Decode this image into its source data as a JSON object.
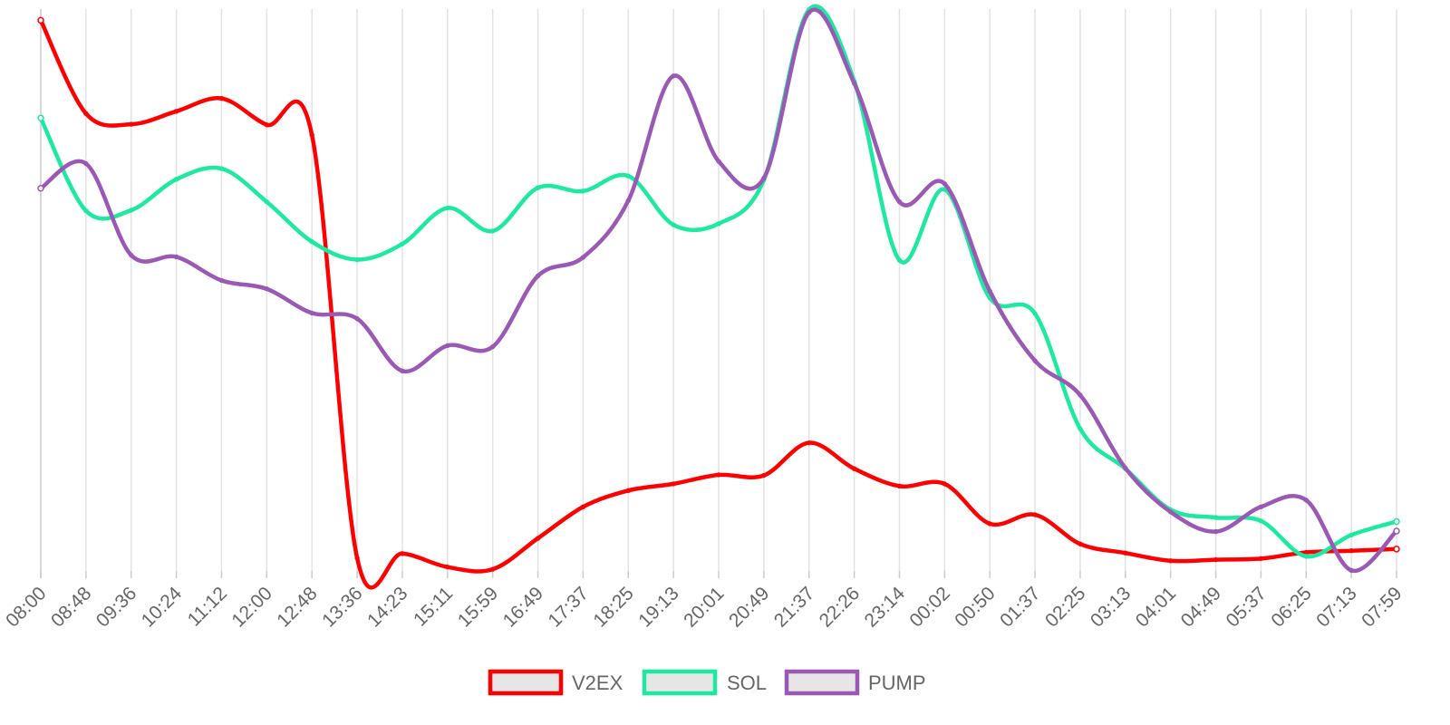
{
  "chart_data": {
    "type": "line",
    "title": "",
    "xlabel": "",
    "ylabel": "",
    "grid": "vertical",
    "legend_position": "bottom",
    "x": [
      "08:00",
      "08:48",
      "09:36",
      "10:24",
      "11:12",
      "12:00",
      "12:48",
      "13:36",
      "14:23",
      "15:11",
      "15:59",
      "16:49",
      "17:37",
      "18:25",
      "19:13",
      "20:01",
      "20:49",
      "21:37",
      "22:26",
      "23:14",
      "00:02",
      "00:50",
      "01:37",
      "02:25",
      "03:13",
      "04:01",
      "04:49",
      "05:37",
      "06:25",
      "07:13",
      "07:59"
    ],
    "ylim": [
      0,
      100
    ],
    "series": [
      {
        "name": "V2EX",
        "color": "#ff0000",
        "values": [
          98.0,
          81.4,
          79.5,
          81.8,
          84.1,
          79.4,
          77.6,
          2.3,
          3.1,
          0.7,
          0.3,
          5.8,
          11.4,
          14.3,
          15.5,
          17.1,
          17.0,
          22.8,
          18.2,
          15.1,
          15.5,
          8.4,
          10.0,
          4.8,
          3.2,
          1.8,
          2.0,
          2.2,
          3.3,
          3.6,
          3.9
        ]
      },
      {
        "name": "SOL",
        "color": "#1de9a0",
        "values": [
          80.6,
          64.1,
          64.2,
          69.7,
          71.6,
          65.7,
          58.6,
          55.4,
          58.2,
          64.6,
          60.5,
          68.2,
          67.6,
          70.3,
          61.6,
          61.8,
          69.6,
          99.9,
          87.2,
          55.3,
          67.9,
          48.6,
          45.8,
          25.3,
          18.2,
          10.9,
          9.5,
          8.9,
          2.6,
          6.4,
          8.8
        ]
      },
      {
        "name": "PUMP",
        "color": "#9b59b6",
        "values": [
          68.1,
          72.5,
          56.2,
          55.9,
          51.7,
          50.2,
          45.9,
          44.9,
          35.6,
          40.1,
          39.9,
          52.5,
          55.8,
          65.9,
          88.1,
          72.9,
          69.9,
          99.4,
          86.8,
          65.7,
          68.9,
          49.8,
          37.4,
          31.3,
          18.3,
          10.5,
          7.0,
          11.4,
          12.6,
          0.1,
          7.1
        ]
      }
    ]
  }
}
